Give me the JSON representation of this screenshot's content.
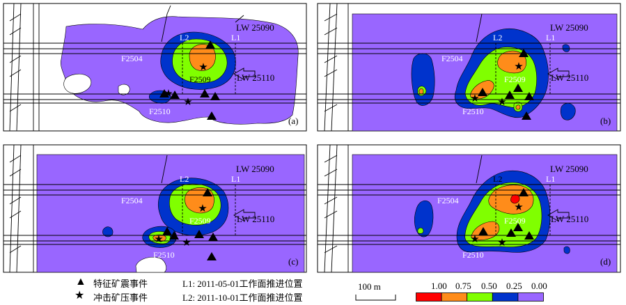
{
  "panels": [
    {
      "label": "(a)"
    },
    {
      "label": "(b)"
    },
    {
      "label": "(c)"
    },
    {
      "label": "(d)"
    }
  ],
  "annotations": {
    "lw_top": "LW 25090",
    "lw_mid": "LW 25110",
    "l1": "L1",
    "l2": "L2",
    "f2504": "F2504",
    "f2509": "F2509",
    "f2510": "F2510"
  },
  "legend": {
    "triangle_label": "特征矿震事件",
    "star_label": "冲击矿压事件",
    "l1_label": "L1: 2011-05-01工作面推进位置",
    "l2_label": "L2: 2011-10-01工作面推进位置",
    "scale_label": "100 m",
    "color_scale": {
      "ticks": [
        "1.00",
        "0.75",
        "0.50",
        "0.25",
        "0.00"
      ],
      "colors": [
        "#ff0000",
        "#ff8c1a",
        "#80ff00",
        "#0033cc",
        "#9966ff"
      ]
    }
  },
  "colors": {
    "red": "#ff0000",
    "orange": "#ff8c1a",
    "green": "#80ff00",
    "blue": "#0033cc",
    "purple": "#9966ff"
  }
}
